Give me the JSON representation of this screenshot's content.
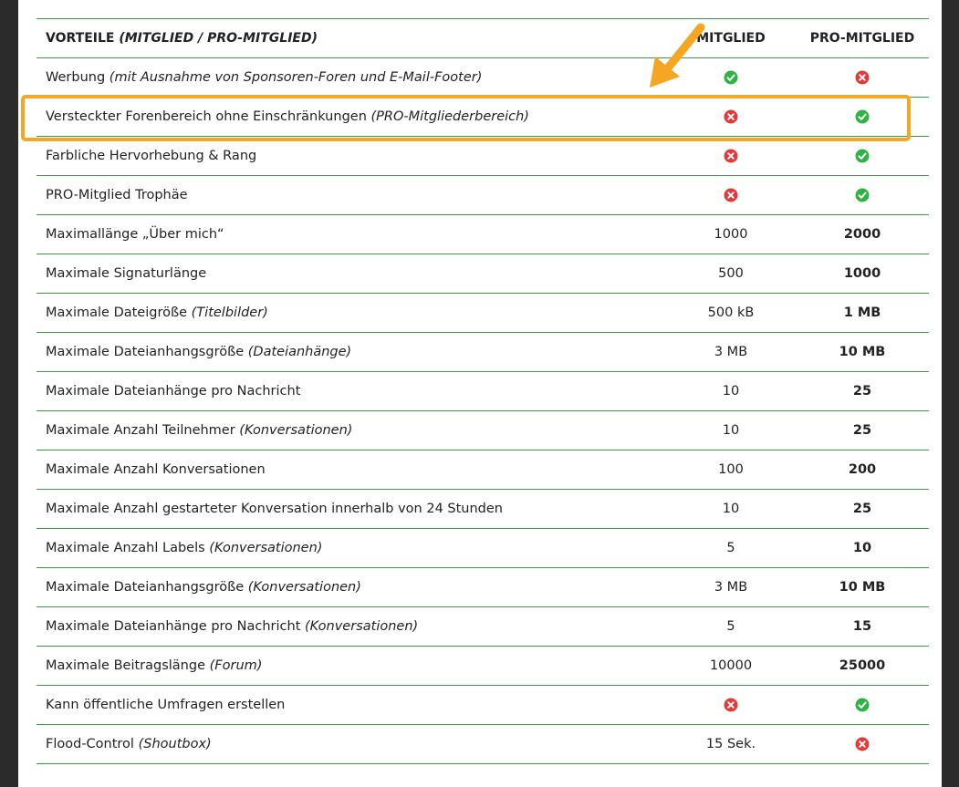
{
  "header": {
    "title": "VORTEILE",
    "title_note": "(MITGLIED / PRO-MITGLIED)",
    "col1": "MITGLIED",
    "col2": "PRO-MITGLIED"
  },
  "rows": [
    {
      "label": "Werbung",
      "note": "(mit Ausnahme von Sponsoren-Foren und E-Mail-Footer)"
    },
    {
      "label": "Versteckter Forenbereich ohne Einschränkungen",
      "note": "(PRO-Mitgliederbereich)"
    },
    {
      "label": "Farbliche Hervorhebung & Rang"
    },
    {
      "label": "PRO-Mitglied Trophäe"
    },
    {
      "label": "Maximallänge „Über mich“",
      "mitglied": "1000",
      "pro": "2000"
    },
    {
      "label": "Maximale Signaturlänge",
      "mitglied": "500",
      "pro": "1000"
    },
    {
      "label": "Maximale Dateigröße",
      "note": "(Titelbilder)",
      "mitglied": "500 kB",
      "pro": "1 MB"
    },
    {
      "label": "Maximale Dateianhangsgröße",
      "note": "(Dateianhänge)",
      "mitglied": "3 MB",
      "pro": "10 MB"
    },
    {
      "label": "Maximale Dateianhänge pro Nachricht",
      "mitglied": "10",
      "pro": "25"
    },
    {
      "label": "Maximale Anzahl Teilnehmer",
      "note": "(Konversationen)",
      "mitglied": "10",
      "pro": "25"
    },
    {
      "label": "Maximale Anzahl Konversationen",
      "mitglied": "100",
      "pro": "200"
    },
    {
      "label": "Maximale Anzahl gestarteter Konversation innerhalb von 24 Stunden",
      "mitglied": "10",
      "pro": "25"
    },
    {
      "label": "Maximale Anzahl Labels",
      "note": "(Konversationen)",
      "mitglied": "5",
      "pro": "10"
    },
    {
      "label": "Maximale Dateianhangsgröße",
      "note": "(Konversationen)",
      "mitglied": "3 MB",
      "pro": "10 MB"
    },
    {
      "label": "Maximale Dateianhänge pro Nachricht",
      "note": "(Konversationen)",
      "mitglied": "5",
      "pro": "15"
    },
    {
      "label": "Maximale Beitragslänge",
      "note": "(Forum)",
      "mitglied": "10000",
      "pro": "25000"
    },
    {
      "label": "Kann öffentliche Umfragen erstellen"
    },
    {
      "label": "Flood-Control",
      "note": "(Shoutbox)",
      "mitglied": "15 Sek."
    }
  ]
}
